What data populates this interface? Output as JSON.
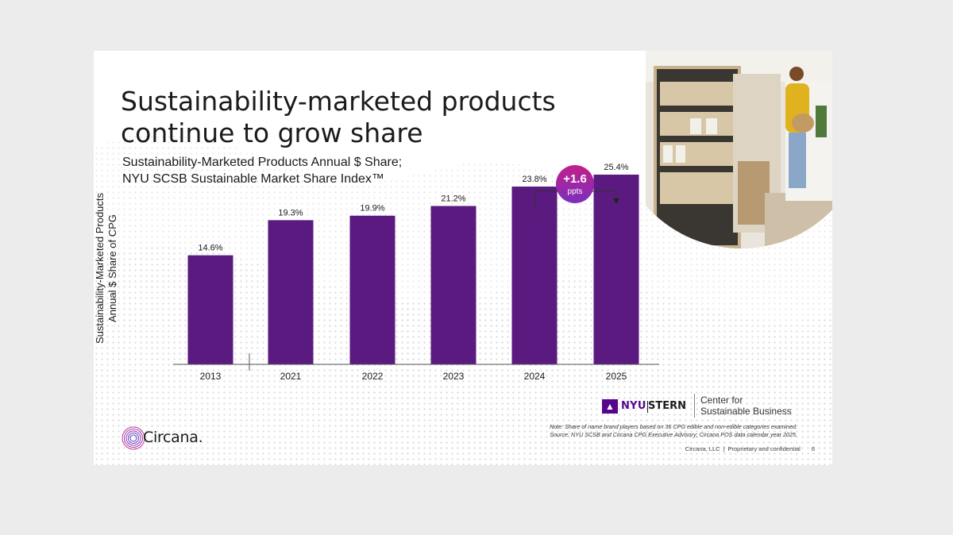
{
  "title_line1": "Sustainability-marketed products",
  "title_line2": "continue to grow share",
  "subtitle_line1": "Sustainability-Marketed Products Annual $ Share;",
  "subtitle_line2": "NYU SCSB Sustainable Market Share Index™",
  "ylabel_line1": "Sustainability-Marketed Products",
  "ylabel_line2": "Annual $ Share of CPG",
  "callout": {
    "value": "+1.6",
    "unit": "ppts",
    "color_top": "#c21f8a",
    "color_bottom": "#7b2fbe"
  },
  "bar_color": "#5b1a80",
  "chart_data": {
    "type": "bar",
    "categories": [
      "2013",
      "2021",
      "2022",
      "2023",
      "2024",
      "2025"
    ],
    "values": [
      14.6,
      19.3,
      19.9,
      21.2,
      23.8,
      25.4
    ],
    "labels": [
      "14.6%",
      "19.3%",
      "19.9%",
      "21.2%",
      "23.8%",
      "25.4%"
    ],
    "title": "Sustainability-Marketed Products Annual $ Share; NYU SCSB Sustainable Market Share Index™",
    "ylabel": "Sustainability-Marketed Products Annual $ Share of CPG",
    "xlabel": "",
    "ylim": [
      0,
      30
    ],
    "axis_break_after": "2013",
    "grid": false
  },
  "nyu": {
    "flag_icon": "torch-icon",
    "nyu": "NYU",
    "stern": "STERN",
    "center_line1": "Center for",
    "center_line2": "Sustainable Business"
  },
  "note_line1": "Note: Share of name brand players based on 36 CPG edible and non-edible categories examined.",
  "note_line2": "Source: NYU SCSB and Circana CPG Executive Advisory; Circana POS data calendar year 2025.",
  "footer": {
    "company": "Circana, LLC",
    "confidential": "Proprietary and confidential",
    "page": "6"
  },
  "logo": {
    "word": "Circana."
  }
}
